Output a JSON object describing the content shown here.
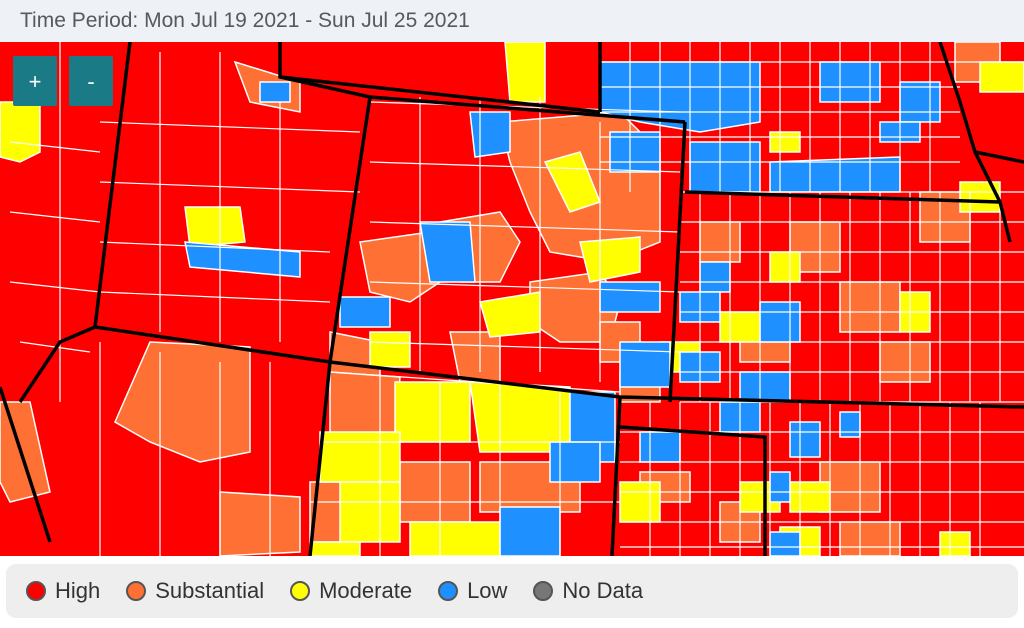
{
  "header": {
    "title": "Time Period: Mon Jul 19 2021 - Sun Jul 25 2021"
  },
  "controls": {
    "zoom_in_label": "+",
    "zoom_out_label": "-"
  },
  "legend": {
    "items": [
      {
        "label": "High",
        "color": "#ff0000"
      },
      {
        "label": "Substantial",
        "color": "#ff7034"
      },
      {
        "label": "Moderate",
        "color": "#ffff00"
      },
      {
        "label": "Low",
        "color": "#1e90ff"
      },
      {
        "label": "No Data",
        "color": "#777777"
      }
    ]
  },
  "colors": {
    "high": "#ff0000",
    "substantial": "#ff7034",
    "moderate": "#ffff00",
    "low": "#1e90ff",
    "state_border": "#000000",
    "county_border": "#ffffff"
  }
}
